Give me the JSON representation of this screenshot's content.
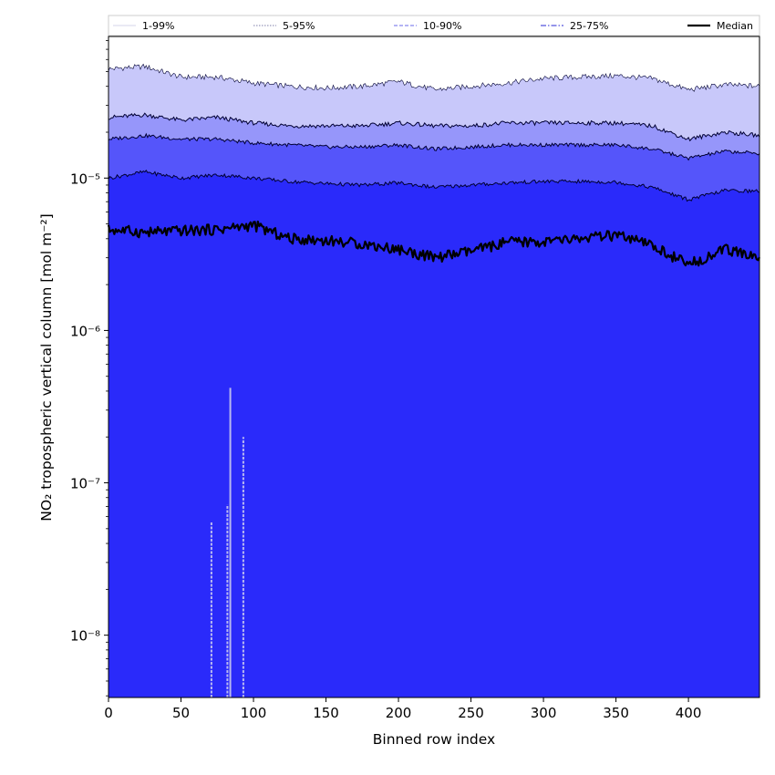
{
  "chart_data": {
    "type": "area",
    "xlabel": "Binned row index",
    "ylabel": "NO₂ tropospheric vertical column [mol m⁻²]",
    "xlim": [
      0,
      449
    ],
    "ylim": [
      3.9e-09,
      8.5e-05
    ],
    "yscale": "log",
    "grid": false,
    "legend_placement": "top, horizontal row",
    "x_ticks": [
      0,
      50,
      100,
      150,
      200,
      250,
      300,
      350,
      400
    ],
    "x_tick_labels": [
      "0",
      "50",
      "100",
      "150",
      "200",
      "250",
      "300",
      "350",
      "400"
    ],
    "y_ticks": [
      1e-08,
      1e-07,
      1e-06,
      1e-05
    ],
    "y_tick_labels": [
      "10⁻⁸",
      "10⁻⁷",
      "10⁻⁶",
      "10⁻⁵"
    ],
    "x": [
      0,
      25,
      50,
      75,
      100,
      125,
      150,
      175,
      200,
      225,
      250,
      275,
      300,
      325,
      350,
      375,
      400,
      425,
      449
    ],
    "bands": [
      {
        "name": "1-99%",
        "color": "#c8c8fa",
        "line_color": "#ccccee",
        "upper": [
          5.2e-05,
          5.4e-05,
          4.6e-05,
          4.6e-05,
          4.2e-05,
          4e-05,
          3.9e-05,
          4e-05,
          4.3e-05,
          3.8e-05,
          4e-05,
          4.2e-05,
          4.5e-05,
          4.6e-05,
          4.7e-05,
          4.5e-05,
          3.8e-05,
          4.1e-05,
          4e-05
        ]
      },
      {
        "name": "5-95%",
        "color": "#9696fa",
        "line_color": "#9999cc",
        "upper": [
          2.5e-05,
          2.6e-05,
          2.4e-05,
          2.5e-05,
          2.3e-05,
          2.2e-05,
          2.2e-05,
          2.2e-05,
          2.3e-05,
          2.2e-05,
          2.2e-05,
          2.3e-05,
          2.3e-05,
          2.3e-05,
          2.3e-05,
          2.2e-05,
          1.8e-05,
          2e-05,
          1.9e-05
        ]
      },
      {
        "name": "10-90%",
        "color": "#5555fa",
        "line_color": "#7777ee",
        "upper": [
          1.8e-05,
          1.9e-05,
          1.8e-05,
          1.8e-05,
          1.7e-05,
          1.65e-05,
          1.6e-05,
          1.6e-05,
          1.65e-05,
          1.55e-05,
          1.6e-05,
          1.65e-05,
          1.65e-05,
          1.65e-05,
          1.65e-05,
          1.55e-05,
          1.35e-05,
          1.5e-05,
          1.45e-05
        ]
      },
      {
        "name": "25-75%",
        "color": "#2a2afa",
        "line_color": "#5555ee",
        "upper": [
          1e-05,
          1.1e-05,
          1e-05,
          1.05e-05,
          1e-05,
          9.5e-06,
          9.2e-06,
          9e-06,
          9.3e-06,
          8.7e-06,
          9e-06,
          9.3e-06,
          9.5e-06,
          9.5e-06,
          9.4e-06,
          8.7e-06,
          7.2e-06,
          8.3e-06,
          8.2e-06
        ]
      }
    ],
    "fill_floor_color": "#2a2afa",
    "median": {
      "name": "Median",
      "color": "#000000",
      "values": [
        4.6e-06,
        4.4e-06,
        4.5e-06,
        4.6e-06,
        4.9e-06,
        4e-06,
        3.9e-06,
        3.7e-06,
        3.4e-06,
        3e-06,
        3.3e-06,
        3.8e-06,
        3.8e-06,
        4e-06,
        4.2e-06,
        3.6e-06,
        2.7e-06,
        3.4e-06,
        3e-06
      ]
    },
    "spikes": [
      {
        "x": 71,
        "bottom": 3.9e-09,
        "top": 5.5e-08
      },
      {
        "x": 82,
        "bottom": 3.9e-09,
        "top": 7.2e-08
      },
      {
        "x": 84,
        "bottom": 3.9e-09,
        "top": 4.2e-07
      },
      {
        "x": 93,
        "bottom": 3.9e-09,
        "top": 2e-07
      }
    ],
    "legend": [
      {
        "label": "1-99%",
        "style": "solid",
        "color": "#ddddee"
      },
      {
        "label": "5-95%",
        "style": "dotted",
        "color": "#9999bb"
      },
      {
        "label": "10-90%",
        "style": "dashed",
        "color": "#8888ee"
      },
      {
        "label": "25-75%",
        "style": "dashdot",
        "color": "#5555dd"
      },
      {
        "label": "Median",
        "style": "solid-thick",
        "color": "#000000"
      }
    ]
  }
}
